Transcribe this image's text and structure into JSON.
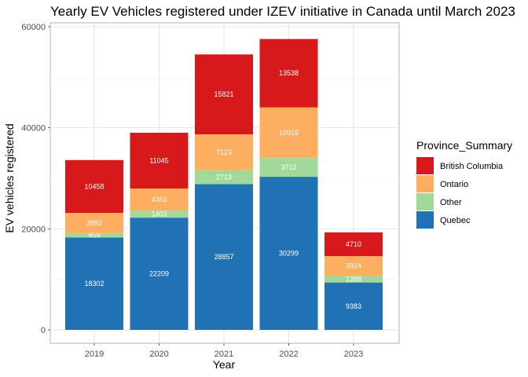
{
  "chart_data": {
    "type": "bar",
    "stacked": true,
    "title": "Yearly EV Vehicles registered under IZEV initiative in Canada until March 2023",
    "xlabel": "Year",
    "ylabel": "EV vehicles registered",
    "categories": [
      "2019",
      "2020",
      "2021",
      "2022",
      "2023"
    ],
    "ylim": [
      0,
      60000
    ],
    "yticks": [
      0,
      20000,
      40000,
      60000
    ],
    "grid": true,
    "legend": {
      "title": "Province_Summary",
      "position": "right",
      "entries": [
        "British Columbia",
        "Ontario",
        "Other",
        "Quebec"
      ]
    },
    "series": [
      {
        "name": "Quebec",
        "color": "#2171b5",
        "values": [
          18302,
          22209,
          28857,
          30299,
          9383
        ]
      },
      {
        "name": "Other",
        "color": "#a1d99b",
        "values": [
          859,
          1403,
          2713,
          3712,
          1288
        ]
      },
      {
        "name": "Ontario",
        "color": "#fdae61",
        "values": [
          3992,
          4363,
          7123,
          10015,
          3924
        ]
      },
      {
        "name": "British Columbia",
        "color": "#d7191c",
        "values": [
          10458,
          11045,
          15821,
          13538,
          4710
        ]
      }
    ]
  }
}
